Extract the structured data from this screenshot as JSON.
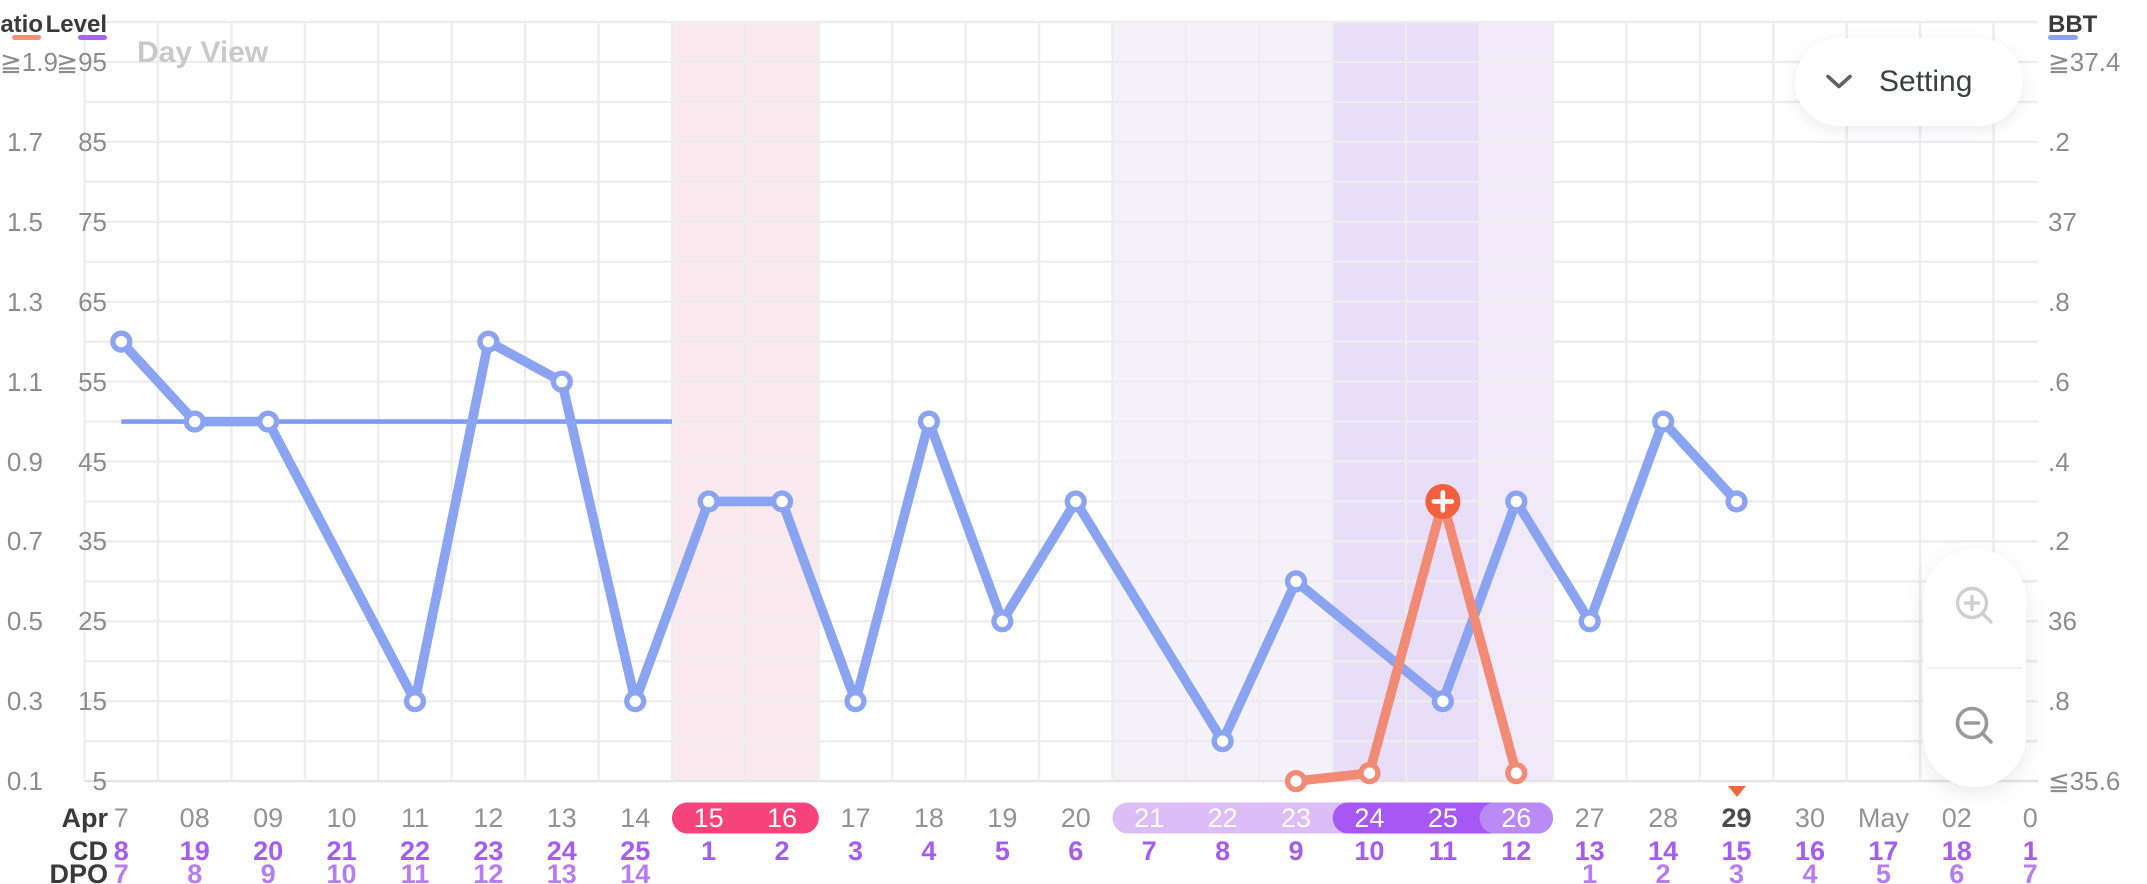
{
  "header": {
    "view_label": "Day View",
    "setting_label": "Setting"
  },
  "axis_headers": {
    "ratio": "Ratio",
    "level": "Level",
    "bbt": "BBT"
  },
  "axis_ticks": {
    "ratio": [
      "≧1.9",
      "1.7",
      "1.5",
      "1.3",
      "1.1",
      "0.9",
      "0.7",
      "0.5",
      "0.3",
      "0.1"
    ],
    "level": [
      "≧95",
      "85",
      "75",
      "65",
      "55",
      "45",
      "35",
      "25",
      "15",
      "5"
    ],
    "bbt": [
      "≧37.4",
      ".2",
      "37",
      ".8",
      ".6",
      ".4",
      ".2",
      "36",
      ".8",
      "≦35.6"
    ]
  },
  "x_rows": {
    "month": "Apr",
    "cd": "CD",
    "dpo": "DPO"
  },
  "columns": [
    {
      "date": "7",
      "cd": "8",
      "dpo": "7"
    },
    {
      "date": "08",
      "cd": "19",
      "dpo": "8"
    },
    {
      "date": "09",
      "cd": "20",
      "dpo": "9"
    },
    {
      "date": "10",
      "cd": "21",
      "dpo": "10"
    },
    {
      "date": "11",
      "cd": "22",
      "dpo": "11"
    },
    {
      "date": "12",
      "cd": "23",
      "dpo": "12"
    },
    {
      "date": "13",
      "cd": "24",
      "dpo": "13"
    },
    {
      "date": "14",
      "cd": "25",
      "dpo": "14"
    },
    {
      "date": "15",
      "cd": "1",
      "dpo": ""
    },
    {
      "date": "16",
      "cd": "2",
      "dpo": ""
    },
    {
      "date": "17",
      "cd": "3",
      "dpo": ""
    },
    {
      "date": "18",
      "cd": "4",
      "dpo": ""
    },
    {
      "date": "19",
      "cd": "5",
      "dpo": ""
    },
    {
      "date": "20",
      "cd": "6",
      "dpo": ""
    },
    {
      "date": "21",
      "cd": "7",
      "dpo": ""
    },
    {
      "date": "22",
      "cd": "8",
      "dpo": ""
    },
    {
      "date": "23",
      "cd": "9",
      "dpo": ""
    },
    {
      "date": "24",
      "cd": "10",
      "dpo": ""
    },
    {
      "date": "25",
      "cd": "11",
      "dpo": ""
    },
    {
      "date": "26",
      "cd": "12",
      "dpo": ""
    },
    {
      "date": "27",
      "cd": "13",
      "dpo": "1"
    },
    {
      "date": "28",
      "cd": "14",
      "dpo": "2"
    },
    {
      "date": "29",
      "cd": "15",
      "dpo": "3",
      "today": true
    },
    {
      "date": "30",
      "cd": "16",
      "dpo": "4"
    },
    {
      "date": "May",
      "cd": "17",
      "dpo": "5"
    },
    {
      "date": "02",
      "cd": "18",
      "dpo": "6"
    },
    {
      "date": "0",
      "cd": "1",
      "dpo": "7"
    }
  ],
  "chart_data": {
    "type": "line",
    "title": "Day View",
    "categories": [
      "7",
      "08",
      "09",
      "10",
      "11",
      "12",
      "13",
      "14",
      "15",
      "16",
      "17",
      "18",
      "19",
      "20",
      "21",
      "22",
      "23",
      "24",
      "25",
      "26",
      "27",
      "28",
      "29",
      "30",
      "May",
      "02",
      "0"
    ],
    "series": [
      {
        "name": "BBT",
        "axis": "bbt",
        "color": "#8ba4f1",
        "values": [
          36.7,
          36.5,
          36.5,
          null,
          35.8,
          36.7,
          36.6,
          35.8,
          36.3,
          36.3,
          35.8,
          36.5,
          36.0,
          36.3,
          null,
          35.7,
          36.1,
          null,
          35.8,
          36.3,
          36.0,
          36.5,
          36.3,
          null,
          null,
          null,
          null
        ]
      },
      {
        "name": "Ratio",
        "axis": "ratio",
        "color": "#f28b76",
        "peak_index": 18,
        "values": [
          null,
          null,
          null,
          null,
          null,
          null,
          null,
          null,
          null,
          null,
          null,
          null,
          null,
          null,
          null,
          null,
          0.1,
          0.12,
          0.8,
          0.12,
          null,
          null,
          null,
          null,
          null,
          null,
          null
        ]
      }
    ],
    "coverline": {
      "series": "BBT",
      "value": 36.5,
      "start_index": 0,
      "end_boundary": 8
    },
    "axes": {
      "bbt": {
        "max": 37.4,
        "min": 35.6,
        "step": 0.2
      },
      "ratio": {
        "max": 1.9,
        "min": 0.1,
        "step": 0.2
      },
      "level": {
        "max": 95,
        "min": 5,
        "step": 10
      }
    },
    "phases": [
      {
        "type": "menstruation",
        "from": 8,
        "to": 9
      },
      {
        "type": "fertile",
        "from": 14,
        "to": 16
      },
      {
        "type": "peak",
        "from": 17,
        "to": 18
      },
      {
        "type": "ovulation",
        "from": 19,
        "to": 19
      }
    ],
    "date_pills": [
      {
        "type": "fertile",
        "from": 14,
        "to": 19
      },
      {
        "type": "peak",
        "from": 17,
        "to": 19
      },
      {
        "type": "ovulation",
        "from": 19,
        "to": 19
      },
      {
        "type": "menstruation",
        "from": 8,
        "to": 9
      }
    ],
    "today_index": 22,
    "grid": true,
    "legend_position": "none"
  },
  "colors": {
    "bbt_line": "#8ba4f1",
    "coverline": "#7e9cf0",
    "ratio_line": "#f28b76",
    "peak_badge": "#f2603f",
    "band_menstruation": "#fae9ef",
    "band_fertile": "#f6f2fb",
    "band_peak": "#e9def7",
    "band_ovulation": "#f1e9fa",
    "pill_menstruation": "#f6437b",
    "pill_fertile": "#dcbdf8",
    "pill_peak": "#a757f3",
    "pill_ovulation": "#ba8af6",
    "cd_text": "#a55cf0",
    "dpo_text": "#b57df2",
    "date_text": "#939393",
    "today_text": "#4c4c4c",
    "ratio_underline": "#f2907c",
    "level_underline": "#a863f2",
    "bbt_underline": "#8ba4f1",
    "today_marker": "#f4653f",
    "grid": "#ededed",
    "axis_line": "#e4e4e4"
  }
}
